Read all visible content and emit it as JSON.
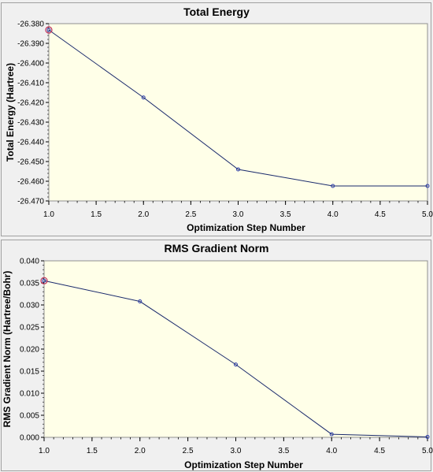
{
  "colors": {
    "window_bg": "#f0f0f0",
    "plot_bg": "#ffffe8",
    "line": "#1a2a6c",
    "point": "#2a3aa8",
    "highlight": "#c0305a"
  },
  "chart_data": [
    {
      "type": "line",
      "title": "Total Energy",
      "xlabel": "Optimization Step Number",
      "ylabel": "Total Energy (Hartree)",
      "xlim": [
        1.0,
        5.0
      ],
      "ylim": [
        -26.47,
        -26.38
      ],
      "x_ticks": [
        "1.0",
        "1.5",
        "2.0",
        "2.5",
        "3.0",
        "3.5",
        "4.0",
        "4.5",
        "5.0"
      ],
      "y_ticks": [
        "-26.380",
        "-26.390",
        "-26.400",
        "-26.410",
        "-26.420",
        "-26.430",
        "-26.440",
        "-26.450",
        "-26.460",
        "-26.470"
      ],
      "grid": false,
      "series": [
        {
          "x": [
            1,
            2,
            3,
            4,
            5
          ],
          "values": [
            -26.3832,
            -26.4175,
            -26.454,
            -26.4624,
            -26.4624
          ]
        }
      ],
      "highlight_index": 0
    },
    {
      "type": "line",
      "title": "RMS Gradient Norm",
      "xlabel": "Optimization Step Number",
      "ylabel": "RMS Gradient Norm (Hartree/Bohr)",
      "xlim": [
        1.0,
        5.0
      ],
      "ylim": [
        0.0,
        0.04
      ],
      "x_ticks": [
        "1.0",
        "1.5",
        "2.0",
        "2.5",
        "3.0",
        "3.5",
        "4.0",
        "4.5",
        "5.0"
      ],
      "y_ticks": [
        "0.040",
        "0.035",
        "0.030",
        "0.025",
        "0.020",
        "0.015",
        "0.010",
        "0.005",
        "0.000"
      ],
      "grid": false,
      "series": [
        {
          "x": [
            1,
            2,
            3,
            4,
            5
          ],
          "values": [
            0.0355,
            0.0308,
            0.0165,
            0.0007,
            0.0001
          ]
        }
      ],
      "highlight_index": 0
    }
  ]
}
